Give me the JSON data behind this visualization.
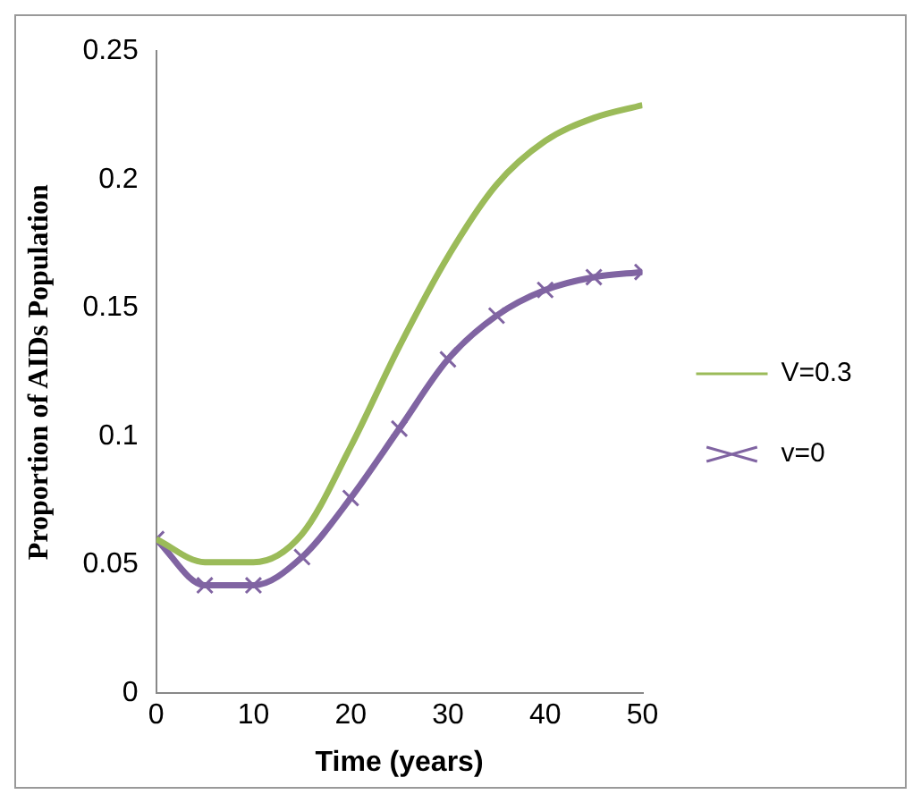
{
  "chart_data": {
    "type": "line",
    "xlabel": "Time (years)",
    "ylabel": "Proportion of AIDs Population",
    "x": [
      0,
      5,
      10,
      15,
      20,
      25,
      30,
      35,
      40,
      45,
      50
    ],
    "series": [
      {
        "name": "V=0.3",
        "color": "#9bbb59",
        "marker": "none",
        "values": [
          0.06,
          0.051,
          0.051,
          0.062,
          0.096,
          0.135,
          0.17,
          0.198,
          0.215,
          0.224,
          0.229
        ]
      },
      {
        "name": "v=0",
        "color": "#8064a2",
        "marker": "cross",
        "values": [
          0.06,
          0.042,
          0.042,
          0.053,
          0.076,
          0.103,
          0.13,
          0.147,
          0.157,
          0.162,
          0.164
        ]
      }
    ],
    "xlim": [
      0,
      50
    ],
    "xticks": [
      0,
      10,
      20,
      30,
      40,
      50
    ],
    "ylim": [
      0,
      0.25
    ],
    "yticks": [
      0,
      0.05,
      0.1,
      0.15,
      0.2,
      0.25
    ],
    "grid": false,
    "legend": "right",
    "line_style": "solid"
  }
}
